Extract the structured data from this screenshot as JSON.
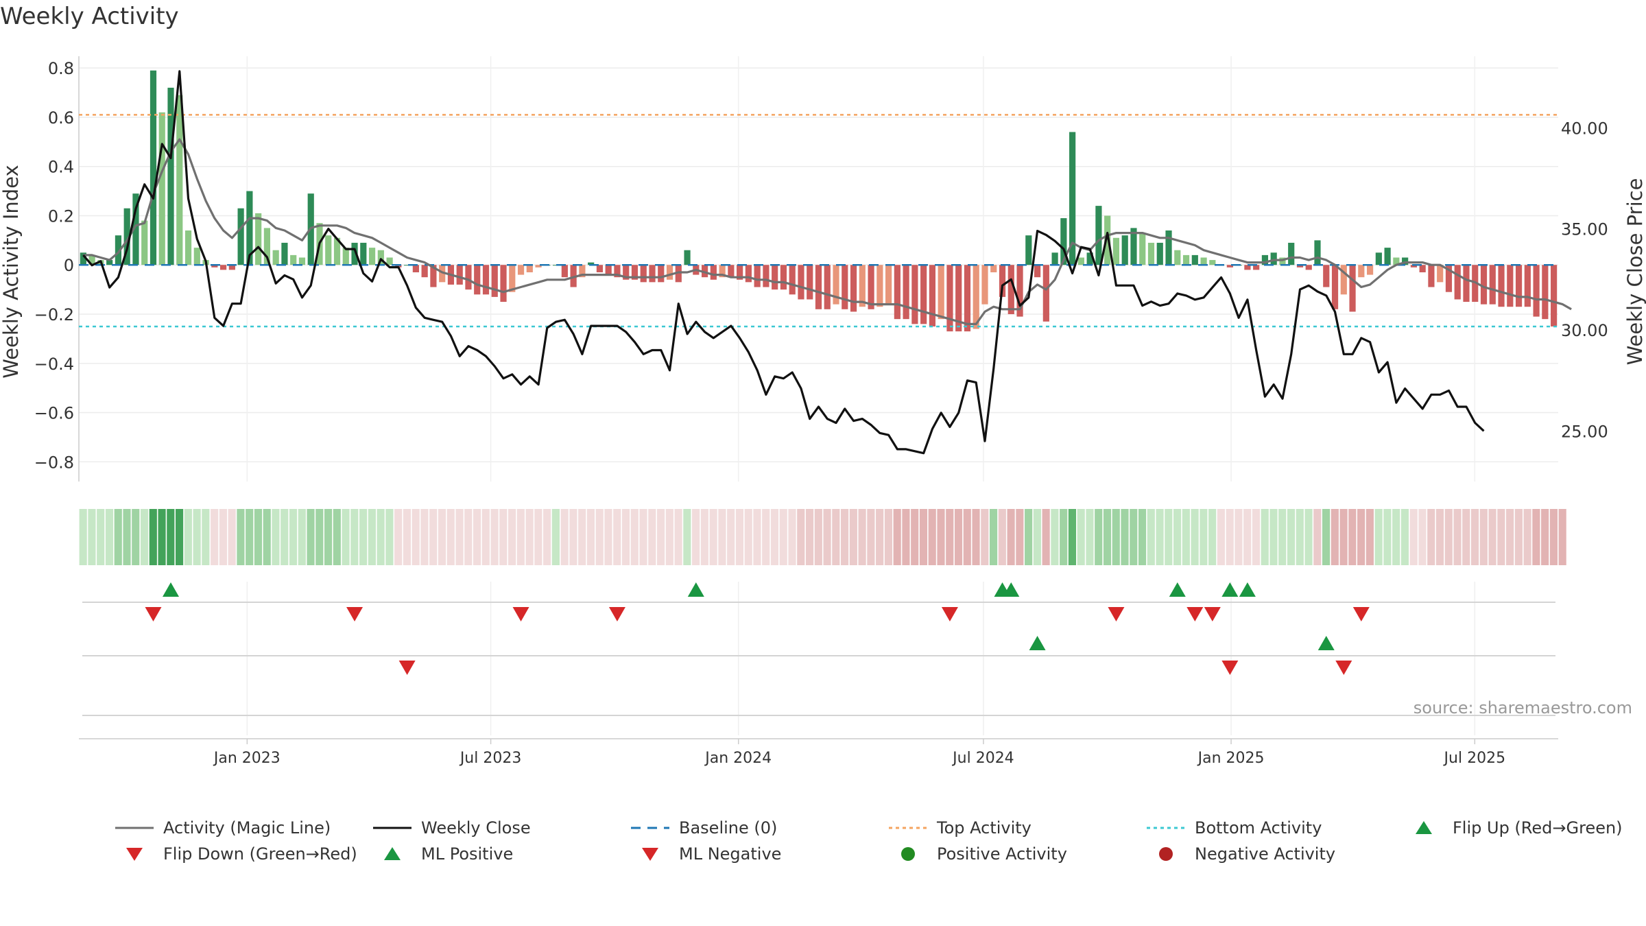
{
  "title": "Weekly Activity",
  "source": "source: sharemaestro.com",
  "chart_data": {
    "type": "bar",
    "title": "Weekly Activity",
    "ylabel_left": "Weekly Activity Index",
    "ylabel_right": "Weekly Close Price",
    "ylim_left": [
      -0.88,
      0.82
    ],
    "ylim_right": [
      22.5,
      43.2
    ],
    "yticks_left": [
      "0.8",
      "0.6",
      "0.4",
      "0.2",
      "0",
      "−0.2",
      "−0.4",
      "−0.6",
      "−0.8"
    ],
    "yticks_left_values": [
      0.8,
      0.6,
      0.4,
      0.2,
      0,
      -0.2,
      -0.4,
      -0.6,
      -0.8
    ],
    "yticks_right": [
      "40.00",
      "35.00",
      "30.00",
      "25.00"
    ],
    "yticks_right_values": [
      40,
      35,
      30,
      25
    ],
    "x_start": "2022-08-29",
    "x_end": "2025-09-01",
    "xticks": [
      {
        "date": "2023-01-01",
        "label": "Jan 2023"
      },
      {
        "date": "2023-07-01",
        "label": "Jul 2023"
      },
      {
        "date": "2024-01-01",
        "label": "Jan 2024"
      },
      {
        "date": "2024-07-01",
        "label": "Jul 2024"
      },
      {
        "date": "2025-01-01",
        "label": "Jan 2025"
      },
      {
        "date": "2025-07-01",
        "label": "Jul 2025"
      }
    ],
    "top_activity": 0.61,
    "bottom_activity": -0.25,
    "activity": [
      0.05,
      0.04,
      0.02,
      0.02,
      0.12,
      0.23,
      0.29,
      0.18,
      0.79,
      0.62,
      0.72,
      0.69,
      0.14,
      0.07,
      0.02,
      -0.01,
      -0.02,
      -0.02,
      0.23,
      0.3,
      0.21,
      0.15,
      0.06,
      0.09,
      0.04,
      0.03,
      0.29,
      0.17,
      0.12,
      0.11,
      0.07,
      0.09,
      0.09,
      0.07,
      0.06,
      0.03,
      -0.01,
      0,
      -0.03,
      -0.05,
      -0.09,
      -0.07,
      -0.08,
      -0.08,
      -0.1,
      -0.12,
      -0.12,
      -0.13,
      -0.15,
      -0.11,
      -0.04,
      -0.03,
      -0.01,
      0,
      0,
      -0.05,
      -0.09,
      -0.05,
      0.01,
      -0.03,
      -0.04,
      -0.05,
      -0.06,
      -0.06,
      -0.07,
      -0.07,
      -0.07,
      -0.06,
      -0.07,
      0.06,
      -0.04,
      -0.05,
      -0.06,
      -0.05,
      -0.05,
      -0.06,
      -0.07,
      -0.09,
      -0.09,
      -0.1,
      -0.1,
      -0.12,
      -0.14,
      -0.14,
      -0.18,
      -0.18,
      -0.16,
      -0.18,
      -0.19,
      -0.17,
      -0.18,
      -0.17,
      -0.16,
      -0.22,
      -0.22,
      -0.24,
      -0.24,
      -0.25,
      -0.22,
      -0.27,
      -0.27,
      -0.27,
      -0.26,
      -0.16,
      -0.03,
      -0.13,
      -0.2,
      -0.21,
      0.12,
      -0.05,
      -0.23,
      0.05,
      0.19,
      0.54,
      0.03,
      0.05,
      0.24,
      0.2,
      0.11,
      0.12,
      0.15,
      0.13,
      0.09,
      0.09,
      0.14,
      0.06,
      0.04,
      0.04,
      0.03,
      0.02,
      0,
      -0.01,
      0,
      -0.02,
      -0.02,
      0.04,
      0.05,
      0.03,
      0.09,
      -0.01,
      -0.02,
      0.1,
      -0.09,
      -0.18,
      -0.12,
      -0.19,
      -0.05,
      -0.04,
      0.05,
      0.07,
      0.03,
      0.03,
      -0.01,
      -0.03,
      -0.09,
      -0.07,
      -0.11,
      -0.14,
      -0.15,
      -0.15,
      -0.16,
      -0.16,
      -0.17,
      -0.17,
      -0.17,
      -0.17,
      -0.21,
      -0.22,
      -0.25
    ],
    "magic_line": [
      0.04,
      0.04,
      0.03,
      0.02,
      0.05,
      0.1,
      0.16,
      0.17,
      0.29,
      0.38,
      0.46,
      0.51,
      0.45,
      0.35,
      0.26,
      0.19,
      0.14,
      0.11,
      0.15,
      0.19,
      0.19,
      0.18,
      0.15,
      0.14,
      0.12,
      0.1,
      0.15,
      0.16,
      0.16,
      0.16,
      0.15,
      0.13,
      0.12,
      0.11,
      0.09,
      0.07,
      0.05,
      0.03,
      0.02,
      0.01,
      -0.01,
      -0.03,
      -0.04,
      -0.05,
      -0.06,
      -0.08,
      -0.09,
      -0.1,
      -0.11,
      -0.1,
      -0.09,
      -0.08,
      -0.07,
      -0.06,
      -0.06,
      -0.06,
      -0.05,
      -0.04,
      -0.04,
      -0.04,
      -0.04,
      -0.04,
      -0.05,
      -0.05,
      -0.05,
      -0.05,
      -0.05,
      -0.04,
      -0.03,
      -0.03,
      -0.02,
      -0.03,
      -0.04,
      -0.04,
      -0.05,
      -0.05,
      -0.05,
      -0.06,
      -0.06,
      -0.07,
      -0.07,
      -0.08,
      -0.09,
      -0.1,
      -0.11,
      -0.12,
      -0.13,
      -0.14,
      -0.15,
      -0.15,
      -0.16,
      -0.16,
      -0.16,
      -0.16,
      -0.17,
      -0.18,
      -0.19,
      -0.2,
      -0.21,
      -0.22,
      -0.23,
      -0.24,
      -0.24,
      -0.19,
      -0.17,
      -0.18,
      -0.18,
      -0.18,
      -0.11,
      -0.08,
      -0.1,
      -0.06,
      0.02,
      0.09,
      0.07,
      0.06,
      0.1,
      0.12,
      0.13,
      0.13,
      0.13,
      0.13,
      0.12,
      0.11,
      0.11,
      0.1,
      0.09,
      0.08,
      0.06,
      0.05,
      0.04,
      0.03,
      0.02,
      0.01,
      0.01,
      0.01,
      0.02,
      0.02,
      0.03,
      0.03,
      0.02,
      0.03,
      0.02,
      0,
      -0.03,
      -0.06,
      -0.09,
      -0.08,
      -0.05,
      -0.02,
      0,
      0.01,
      0.01,
      0.01,
      0,
      0,
      -0.02,
      -0.04,
      -0.06,
      -0.07,
      -0.09,
      -0.1,
      -0.11,
      -0.12,
      -0.13,
      -0.13,
      -0.14,
      -0.14,
      -0.15,
      -0.16,
      -0.18
    ],
    "weekly_close": [
      33.7,
      33.2,
      33.4,
      32.1,
      32.6,
      34.0,
      36.0,
      37.2,
      36.5,
      39.2,
      38.5,
      42.8,
      36.5,
      34.5,
      33.4,
      30.6,
      30.2,
      31.3,
      31.3,
      33.7,
      34.1,
      33.6,
      32.3,
      32.7,
      32.5,
      31.6,
      32.2,
      34.3,
      35.0,
      34.5,
      34.0,
      34.0,
      32.8,
      32.4,
      33.5,
      33.1,
      33.1,
      32.2,
      31.1,
      30.6,
      30.5,
      30.4,
      29.7,
      28.7,
      29.2,
      29.0,
      28.7,
      28.2,
      27.6,
      27.8,
      27.3,
      27.7,
      27.3,
      30.1,
      30.4,
      30.5,
      29.8,
      28.8,
      30.2,
      30.2,
      30.2,
      30.2,
      29.9,
      29.4,
      28.8,
      29.0,
      29.0,
      28.0,
      31.3,
      29.8,
      30.4,
      29.9,
      29.6,
      29.9,
      30.2,
      29.6,
      28.9,
      28.0,
      26.8,
      27.7,
      27.6,
      27.9,
      27.1,
      25.6,
      26.2,
      25.6,
      25.4,
      26.1,
      25.5,
      25.6,
      25.3,
      24.9,
      24.8,
      24.1,
      24.1,
      24.0,
      23.9,
      25.1,
      25.9,
      25.2,
      25.9,
      27.5,
      27.4,
      24.5,
      28.1,
      32.2,
      32.5,
      31.2,
      31.6,
      34.9,
      34.7,
      34.4,
      34.0,
      32.8,
      34.1,
      34.0,
      32.7,
      34.8,
      32.2,
      32.2,
      32.2,
      31.2,
      31.4,
      31.2,
      31.3,
      31.8,
      31.7,
      31.5,
      31.6,
      32.1,
      32.6,
      31.8,
      30.6,
      31.5,
      29.0,
      26.7,
      27.3,
      26.6,
      28.8,
      32.0,
      32.2,
      31.9,
      31.7,
      30.9,
      28.8,
      28.8,
      29.6,
      29.4,
      27.9,
      28.4,
      26.4,
      27.1,
      26.6,
      26.1,
      26.8,
      26.8,
      27.0,
      26.2,
      26.2,
      25.4,
      25.0
    ]
  },
  "strip_colors": [
    "#c6e7c6",
    "#c6e7c6",
    "#c6e7c6",
    "#c6e7c6",
    "#9fd3a3",
    "#9fd3a3",
    "#9fd3a3",
    "#c6e7c6",
    "#43a35a",
    "#43a35a",
    "#43a35a",
    "#43a35a",
    "#c6e7c6",
    "#c6e7c6",
    "#c6e7c6",
    "#f1dcdc",
    "#f1dcdc",
    "#f1dcdc",
    "#9fd3a3",
    "#9fd3a3",
    "#9fd3a3",
    "#9fd3a3",
    "#c6e7c6",
    "#c6e7c6",
    "#c6e7c6",
    "#c6e7c6",
    "#9fd3a3",
    "#9fd3a3",
    "#9fd3a3",
    "#9fd3a3",
    "#c6e7c6",
    "#c6e7c6",
    "#c6e7c6",
    "#c6e7c6",
    "#c6e7c6",
    "#c6e7c6",
    "#f1dcdc",
    "#f1dcdc",
    "#f1dcdc",
    "#f1dcdc",
    "#f1dcdc",
    "#f1dcdc",
    "#f1dcdc",
    "#f1dcdc",
    "#f1dcdc",
    "#f1dcdc",
    "#f1dcdc",
    "#f1dcdc",
    "#f1dcdc",
    "#f1dcdc",
    "#f1dcdc",
    "#f1dcdc",
    "#f1dcdc",
    "#f1dcdc",
    "#c6e7c6",
    "#f1dcdc",
    "#f1dcdc",
    "#f1dcdc",
    "#f1dcdc",
    "#f1dcdc",
    "#f1dcdc",
    "#f1dcdc",
    "#f1dcdc",
    "#f1dcdc",
    "#f1dcdc",
    "#f1dcdc",
    "#f1dcdc",
    "#f1dcdc",
    "#f1dcdc",
    "#c6e7c6",
    "#f1dcdc",
    "#f1dcdc",
    "#f1dcdc",
    "#f1dcdc",
    "#f1dcdc",
    "#f1dcdc",
    "#f1dcdc",
    "#f1dcdc",
    "#f1dcdc",
    "#f1dcdc",
    "#f1dcdc",
    "#f1dcdc",
    "#eacaca",
    "#eacaca",
    "#eacaca",
    "#eacaca",
    "#eacaca",
    "#eacaca",
    "#eacaca",
    "#eacaca",
    "#eacaca",
    "#eacaca",
    "#eacaca",
    "#e2b3b3",
    "#e2b3b3",
    "#e2b3b3",
    "#e2b3b3",
    "#e2b3b3",
    "#e2b3b3",
    "#e2b3b3",
    "#e2b3b3",
    "#e2b3b3",
    "#e2b3b3",
    "#eacaca",
    "#9fd3a3",
    "#eacaca",
    "#e2b3b3",
    "#e2b3b3",
    "#9fd3a3",
    "#c6e7c6",
    "#e2b3b3",
    "#c6e7c6",
    "#9fd3a3",
    "#5fb46f",
    "#c6e7c6",
    "#c6e7c6",
    "#9fd3a3",
    "#9fd3a3",
    "#9fd3a3",
    "#9fd3a3",
    "#9fd3a3",
    "#9fd3a3",
    "#c6e7c6",
    "#c6e7c6",
    "#c6e7c6",
    "#c6e7c6",
    "#c6e7c6",
    "#c6e7c6",
    "#c6e7c6",
    "#c6e7c6",
    "#f1dcdc",
    "#f1dcdc",
    "#f1dcdc",
    "#f1dcdc",
    "#f1dcdc",
    "#c6e7c6",
    "#c6e7c6",
    "#c6e7c6",
    "#c6e7c6",
    "#c6e7c6",
    "#c6e7c6",
    "#eacaca",
    "#9fd3a3",
    "#e2b3b3",
    "#e2b3b3",
    "#e2b3b3",
    "#e2b3b3",
    "#e2b3b3",
    "#c6e7c6",
    "#c6e7c6",
    "#c6e7c6",
    "#c6e7c6",
    "#f1dcdc",
    "#f1dcdc",
    "#eacaca",
    "#eacaca",
    "#eacaca",
    "#eacaca",
    "#eacaca",
    "#eacaca",
    "#eacaca",
    "#eacaca",
    "#eacaca",
    "#eacaca",
    "#eacaca",
    "#eacaca",
    "#e2b3b3",
    "#e2b3b3",
    "#e2b3b3",
    "#e2b3b3"
  ],
  "signals": {
    "flip_up": [
      10,
      70,
      105,
      106,
      125,
      131,
      133
    ],
    "flip_down": [
      8,
      31,
      50,
      61,
      99,
      118,
      127,
      129,
      146
    ],
    "ml_positive": [
      109,
      142
    ],
    "ml_negative": [
      37,
      131,
      144
    ]
  },
  "colors": {
    "pos_strong": "#2e8b57",
    "pos_light": "#8cc784",
    "neg_strong": "#cc5c5c",
    "neg_light": "#e8967a",
    "magic_line": "#707070",
    "weekly_close": "#111111",
    "baseline": "#1f77b4",
    "top_activity": "#f4a460",
    "bottom_activity": "#3cc8d2",
    "flip_up": "#1a9641",
    "flip_down": "#d62728",
    "positive_activity": "#228b22",
    "negative_activity": "#b22222"
  },
  "legend": [
    {
      "key": "magic",
      "label": "Activity (Magic Line)",
      "icon": "gray-line"
    },
    {
      "key": "close",
      "label": "Weekly Close",
      "icon": "black-line"
    },
    {
      "key": "baseline",
      "label": "Baseline (0)",
      "icon": "blue-dashed-line"
    },
    {
      "key": "top",
      "label": "Top Activity",
      "icon": "orange-dotted-line"
    },
    {
      "key": "bottom",
      "label": "Bottom Activity",
      "icon": "cyan-dotted-line"
    },
    {
      "key": "flipup",
      "label": "Flip Up (Red→Green)",
      "icon": "green-triangle-up"
    },
    {
      "key": "flipdown",
      "label": "Flip Down (Green→Red)",
      "icon": "red-triangle-down"
    },
    {
      "key": "mlpos",
      "label": "ML Positive",
      "icon": "green-triangle-up"
    },
    {
      "key": "mlneg",
      "label": "ML Negative",
      "icon": "red-triangle-down"
    },
    {
      "key": "posact",
      "label": "Positive Activity",
      "icon": "green-circle"
    },
    {
      "key": "negact",
      "label": "Negative Activity",
      "icon": "red-circle"
    }
  ]
}
